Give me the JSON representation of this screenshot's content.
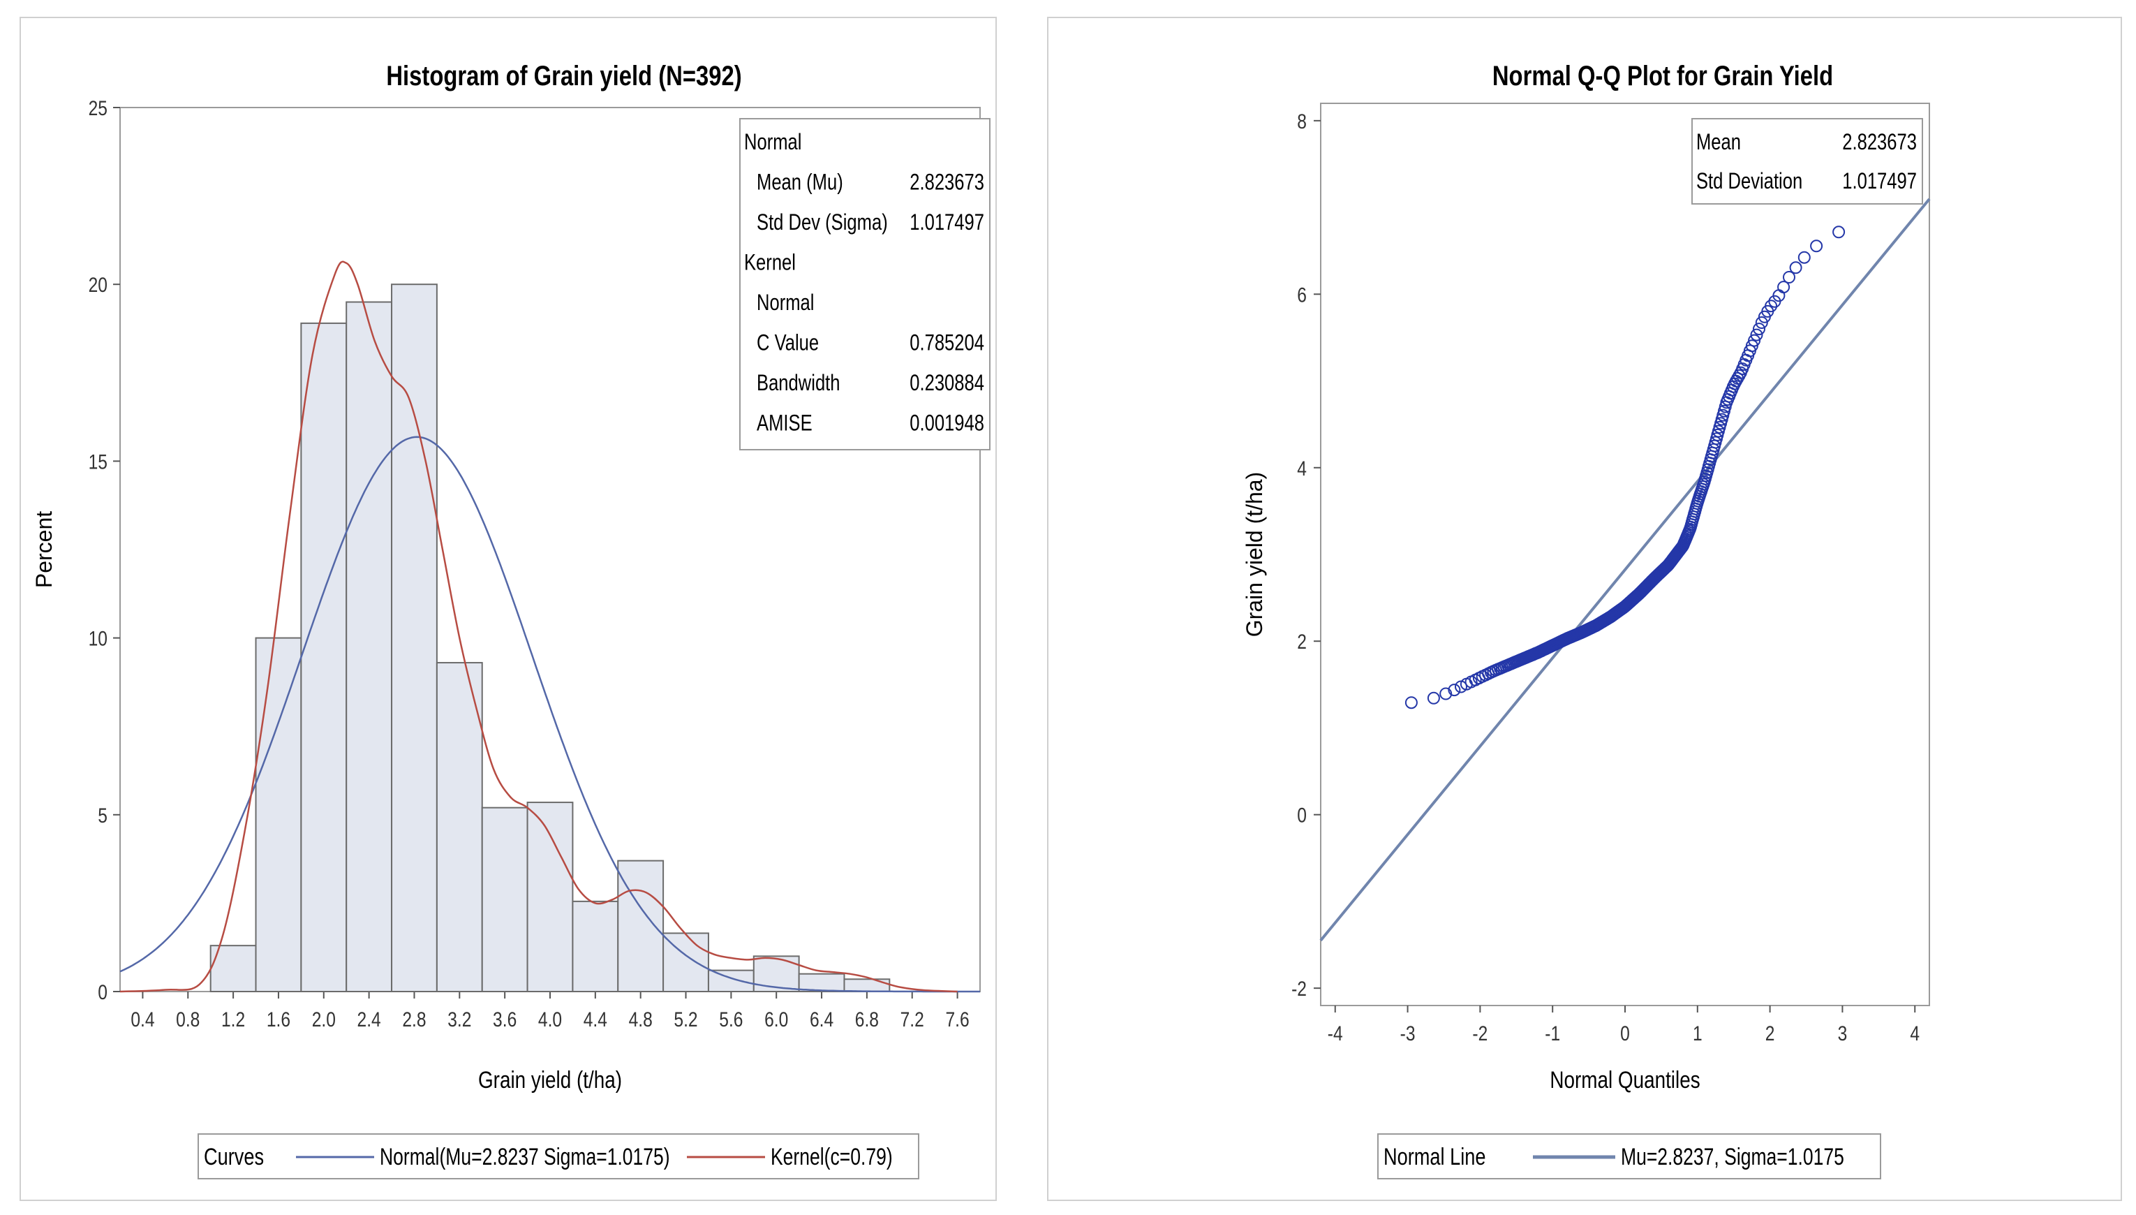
{
  "chart_data": [
    {
      "type": "bar",
      "title": "Histogram of Grain yield (N=392)",
      "xlabel": "Grain yield (t/ha)",
      "ylabel": "Percent",
      "xlim": [
        0.2,
        7.8
      ],
      "ylim": [
        0,
        25
      ],
      "x_ticks": [
        "0.4",
        "0.8",
        "1.2",
        "1.6",
        "2.0",
        "2.4",
        "2.8",
        "3.2",
        "3.6",
        "4.0",
        "4.4",
        "4.8",
        "5.2",
        "5.6",
        "6.0",
        "6.4",
        "6.8",
        "7.2",
        "7.6"
      ],
      "y_ticks": [
        "0",
        "5",
        "10",
        "15",
        "20",
        "25"
      ],
      "bin_width": 0.4,
      "bin_centers": [
        1.2,
        1.6,
        2.0,
        2.4,
        2.8,
        3.2,
        3.6,
        4.0,
        4.4,
        4.8,
        5.2,
        5.6,
        6.0,
        6.4,
        6.8
      ],
      "values": [
        1.3,
        10.0,
        18.9,
        19.5,
        20.0,
        9.3,
        5.2,
        5.35,
        2.55,
        3.7,
        1.65,
        0.6,
        1.0,
        0.5,
        0.35
      ],
      "colors": {
        "bar_fill": "#e3e7f0",
        "bar_stroke": "#6b6b6b",
        "normal": "#5468a8",
        "kernel": "#b74c43"
      },
      "stats": {
        "rows": [
          {
            "label": "Normal",
            "value": "",
            "indent": false
          },
          {
            "label": "Mean (Mu)",
            "value": "2.823673",
            "indent": true
          },
          {
            "label": "Std Dev (Sigma)",
            "value": "1.017497",
            "indent": true
          },
          {
            "label": "Kernel",
            "value": "",
            "indent": false
          },
          {
            "label": "Normal",
            "value": "",
            "indent": true
          },
          {
            "label": "C Value",
            "value": "0.785204",
            "indent": true
          },
          {
            "label": "Bandwidth",
            "value": "0.230884",
            "indent": true
          },
          {
            "label": "AMISE",
            "value": "0.001948",
            "indent": true
          }
        ]
      },
      "legend": {
        "title": "Curves",
        "entries": [
          {
            "label": "Normal(Mu=2.8237 Sigma=1.0175)",
            "color": "#5468a8"
          },
          {
            "label": "Kernel(c=0.79)",
            "color": "#b74c43"
          }
        ],
        "placement": "bottom"
      },
      "series": [
        {
          "name": "Normal(Mu=2.8237 Sigma=1.0175)",
          "mu": 2.8237,
          "sigma": 1.0175
        },
        {
          "name": "Kernel(c=0.79)",
          "x": [
            0.2,
            0.6,
            0.9,
            1.1,
            1.3,
            1.5,
            1.7,
            1.9,
            2.1,
            2.2,
            2.3,
            2.45,
            2.6,
            2.75,
            2.9,
            3.05,
            3.2,
            3.35,
            3.5,
            3.65,
            3.8,
            3.95,
            4.1,
            4.25,
            4.4,
            4.55,
            4.7,
            4.85,
            5.0,
            5.15,
            5.3,
            5.45,
            5.6,
            5.75,
            5.9,
            6.05,
            6.2,
            6.35,
            6.5,
            6.65,
            6.8,
            6.95,
            7.1,
            7.3,
            7.6
          ],
          "y": [
            0,
            0.05,
            0.2,
            1.5,
            4.5,
            8.5,
            13.5,
            18.0,
            20.3,
            20.6,
            20.0,
            18.4,
            17.4,
            16.8,
            15.0,
            12.5,
            10.0,
            8.0,
            6.3,
            5.5,
            5.2,
            4.7,
            3.8,
            2.9,
            2.5,
            2.6,
            2.85,
            2.8,
            2.4,
            1.8,
            1.3,
            1.05,
            0.95,
            0.9,
            0.95,
            0.9,
            0.75,
            0.6,
            0.55,
            0.5,
            0.4,
            0.25,
            0.12,
            0.04,
            0.0
          ]
        }
      ]
    },
    {
      "type": "scatter",
      "title": "Normal Q-Q Plot for Grain Yield",
      "xlabel": "Normal Quantiles",
      "ylabel": "Grain yield (t/ha)",
      "xlim": [
        -4.2,
        4.2
      ],
      "ylim": [
        -2.2,
        8.2
      ],
      "x_ticks": [
        "-4",
        "-3",
        "-2",
        "-1",
        "0",
        "1",
        "2",
        "3",
        "4"
      ],
      "y_ticks": [
        "-2",
        "0",
        "2",
        "4",
        "6",
        "8"
      ],
      "colors": {
        "marker": "#2437a8",
        "line": "#7085ad"
      },
      "stats": {
        "rows": [
          {
            "label": "Mean",
            "value": "2.823673"
          },
          {
            "label": "Std Deviation",
            "value": "1.017497"
          }
        ]
      },
      "legend": {
        "title": "Normal Line",
        "entries": [
          {
            "label": "Mu=2.8237, Sigma=1.0175",
            "color": "#7085ad"
          }
        ],
        "placement": "bottom"
      },
      "reference_line": {
        "intercept": 2.8237,
        "slope": 1.0175
      },
      "n_points": 392,
      "quantile_curve": {
        "x": [
          -3.2,
          -2.9,
          -2.6,
          -2.4,
          -2.2,
          -2.0,
          -1.8,
          -1.6,
          -1.4,
          -1.2,
          -1.0,
          -0.8,
          -0.6,
          -0.4,
          -0.2,
          0.0,
          0.2,
          0.4,
          0.6,
          0.8,
          0.9,
          1.0,
          1.1,
          1.2,
          1.3,
          1.4,
          1.5,
          1.6,
          1.7,
          1.8,
          1.9,
          2.0,
          2.1,
          2.2,
          2.3,
          2.5,
          2.7,
          2.9,
          3.2
        ],
        "y": [
          1.25,
          1.3,
          1.35,
          1.42,
          1.5,
          1.58,
          1.66,
          1.73,
          1.8,
          1.87,
          1.95,
          2.03,
          2.1,
          2.18,
          2.28,
          2.4,
          2.55,
          2.72,
          2.88,
          3.1,
          3.3,
          3.6,
          3.85,
          4.15,
          4.45,
          4.75,
          4.95,
          5.1,
          5.3,
          5.5,
          5.7,
          5.85,
          5.95,
          6.1,
          6.25,
          6.45,
          6.6,
          6.7,
          6.8
        ]
      }
    }
  ]
}
